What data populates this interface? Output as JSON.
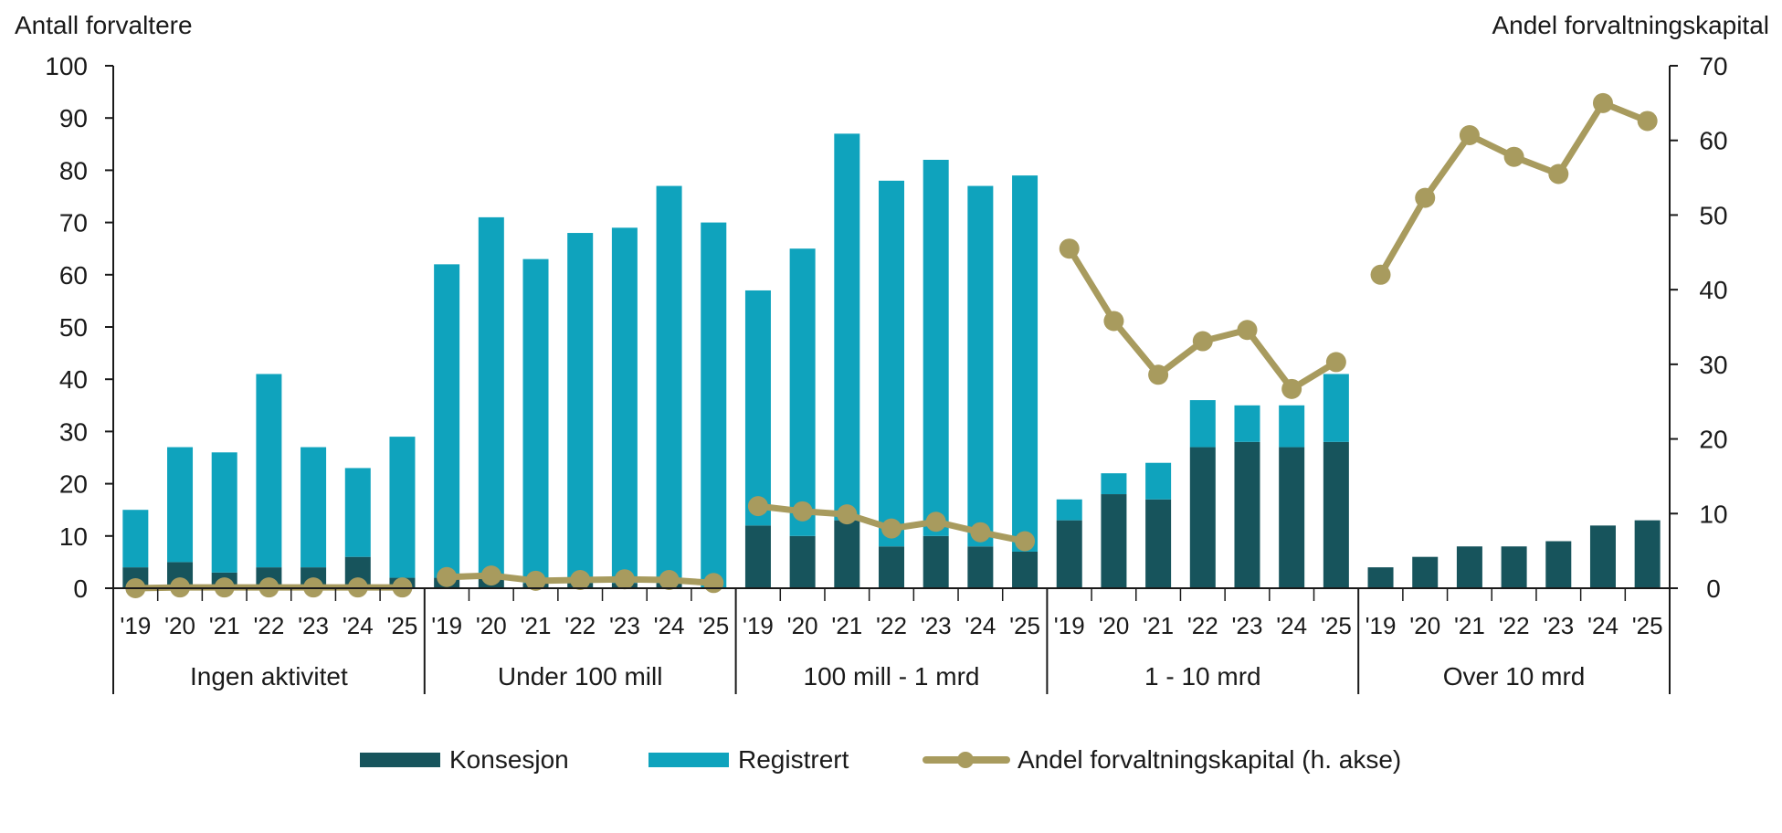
{
  "chart_data": {
    "type": "bar",
    "y_left_title": "Antall forvaltere",
    "y_right_title": "Andel forvaltningskapital",
    "ylim_left": [
      0,
      100
    ],
    "ylim_right": [
      0,
      70
    ],
    "yticks_left": [
      "0",
      "10",
      "20",
      "30",
      "40",
      "50",
      "60",
      "70",
      "80",
      "90",
      "100"
    ],
    "yticks_right": [
      "0",
      "10",
      "20",
      "30",
      "40",
      "50",
      "60",
      "70"
    ],
    "year_labels": [
      "'19",
      "'20",
      "'21",
      "'22",
      "'23",
      "'24",
      "'25"
    ],
    "stacked": true,
    "grid": false,
    "legend_position": "bottom",
    "colors": {
      "konsesjon": "#17545c",
      "registrert": "#0fa3bd",
      "andel": "#a89b5e"
    },
    "legend": [
      "Konsesjon",
      "Registrert",
      "Andel forvaltningskapital (h. akse)"
    ],
    "groups": [
      {
        "name": "Ingen aktivitet",
        "konsesjon": [
          4,
          5,
          3,
          4,
          4,
          6,
          2
        ],
        "registrert": [
          11,
          22,
          23,
          37,
          23,
          17,
          27
        ],
        "andel": [
          0,
          0.1,
          0.1,
          0.1,
          0.1,
          0.1,
          0.1
        ]
      },
      {
        "name": "Under 100 mill",
        "konsesjon": [
          2,
          2,
          1,
          1,
          1,
          1,
          0
        ],
        "registrert": [
          60,
          69,
          62,
          67,
          68,
          76,
          70
        ],
        "andel": [
          1.5,
          1.7,
          1.0,
          1.1,
          1.2,
          1.1,
          0.7
        ]
      },
      {
        "name": "100 mill - 1 mrd",
        "konsesjon": [
          12,
          10,
          13,
          8,
          10,
          8,
          7
        ],
        "registrert": [
          45,
          55,
          74,
          70,
          72,
          69,
          72
        ],
        "andel": [
          11.0,
          10.3,
          9.9,
          8.0,
          8.9,
          7.5,
          6.3
        ]
      },
      {
        "name": "1 - 10 mrd",
        "konsesjon": [
          13,
          18,
          17,
          27,
          28,
          27,
          28
        ],
        "registrert": [
          4,
          4,
          7,
          9,
          7,
          8,
          13
        ],
        "andel": [
          45.5,
          35.8,
          28.6,
          33.1,
          34.6,
          26.7,
          30.3
        ]
      },
      {
        "name": "Over 10 mrd",
        "konsesjon": [
          4,
          6,
          8,
          8,
          9,
          12,
          13
        ],
        "registrert": [
          0,
          0,
          0,
          0,
          0,
          0,
          0
        ],
        "andel": [
          42.0,
          52.3,
          60.7,
          57.8,
          55.5,
          65.0,
          62.6
        ]
      }
    ]
  }
}
